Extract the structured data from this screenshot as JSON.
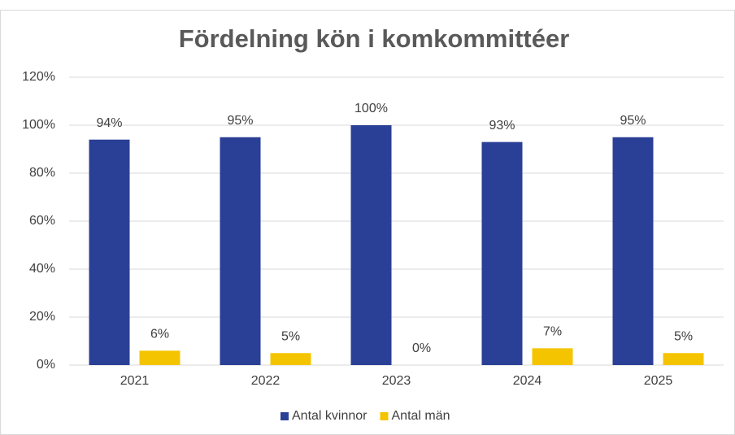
{
  "chart_data": {
    "type": "bar",
    "title": "Fördelning kön i komkommittéer",
    "categories": [
      "2021",
      "2022",
      "2023",
      "2024",
      "2025"
    ],
    "series": [
      {
        "name": "Antal kvinnor",
        "color": "#2a3f96",
        "values": [
          94,
          95,
          100,
          93,
          95
        ],
        "value_labels": [
          "94%",
          "95%",
          "100%",
          "93%",
          "95%"
        ]
      },
      {
        "name": "Antal män",
        "color": "#f5c400",
        "values": [
          6,
          5,
          0,
          7,
          5
        ],
        "value_labels": [
          "6%",
          "5%",
          "0%",
          "7%",
          "5%"
        ]
      }
    ],
    "ylim": [
      0,
      120
    ],
    "yticks": [
      {
        "value": 0,
        "label": "0%"
      },
      {
        "value": 20,
        "label": "20%"
      },
      {
        "value": 40,
        "label": "40%"
      },
      {
        "value": 60,
        "label": "60%"
      },
      {
        "value": 80,
        "label": "80%"
      },
      {
        "value": 100,
        "label": "100%"
      },
      {
        "value": 120,
        "label": "120%"
      }
    ],
    "grid": true,
    "legend": "bottom"
  }
}
